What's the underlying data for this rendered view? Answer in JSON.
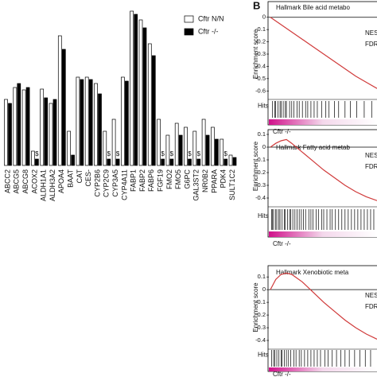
{
  "chart_data": [
    {
      "type": "bar",
      "categories": [
        "ABCC2",
        "ABCG5",
        "ABCG8",
        "ACOX2",
        "ALDH1A1",
        "ALDH3A2",
        "APOA4",
        "BAAT",
        "CAT",
        "CES-",
        "CYP2B6",
        "CYP2C9",
        "CYP3A5",
        "CYP4A11",
        "FABP1",
        "FABP2",
        "FABP6",
        "FGF19",
        "FMO2",
        "FMO5",
        "G6PC",
        "GAL3ST2",
        "NR0B2",
        "PPARA",
        "PDK4",
        "SULT1C2"
      ],
      "series": [
        {
          "name": "Cftr N/N",
          "color": "#ffffff",
          "values": [
            83,
            98,
            95,
            18,
            96,
            78,
            163,
            43,
            111,
            111,
            103,
            43,
            58,
            111,
            194,
            183,
            153,
            58,
            38,
            53,
            48,
            43,
            58,
            48,
            33,
            13
          ]
        },
        {
          "name": "Cftr -/-",
          "color": "#000000",
          "values": [
            78,
            103,
            98,
            8,
            85,
            83,
            146,
            13,
            108,
            108,
            90,
            8,
            8,
            106,
            190,
            173,
            138,
            8,
            8,
            38,
            8,
            8,
            38,
            33,
            8,
            10
          ]
        }
      ],
      "annotations": [
        null,
        null,
        null,
        "$",
        null,
        null,
        null,
        null,
        null,
        null,
        null,
        "$",
        "$",
        null,
        null,
        null,
        null,
        "$",
        "$",
        null,
        "$",
        "$",
        null,
        null,
        "$",
        null
      ],
      "ylim": [
        0,
        208
      ],
      "legend": "top-right"
    },
    {
      "type": "line",
      "panel_label": "B",
      "title": "Hallmark Bile acid metabo",
      "ylabel": "Enrichment score",
      "x": [
        0,
        10,
        20,
        30,
        40,
        50,
        60,
        70,
        80,
        90,
        100
      ],
      "values": [
        0,
        -0.06,
        -0.12,
        -0.18,
        -0.24,
        -0.3,
        -0.36,
        -0.42,
        -0.48,
        -0.53,
        -0.58
      ],
      "color": "#d03a3a",
      "xlim": [
        0,
        100
      ],
      "ylim": [
        -0.65,
        0.05
      ],
      "yticks": [
        0,
        -0.1,
        -0.2,
        -0.3,
        -0.4,
        -0.5,
        -0.6
      ],
      "hits": [
        2,
        4,
        5,
        7,
        9,
        10,
        12,
        14,
        15,
        18,
        20,
        22,
        25,
        27,
        30,
        33,
        35,
        38,
        41,
        44,
        48,
        52,
        55,
        60,
        64,
        70,
        75,
        81,
        88,
        95
      ],
      "hits_label": "Hits",
      "phenotype_label": "Cftr -/-",
      "stats": [
        "NES",
        "FDR"
      ]
    },
    {
      "type": "line",
      "title": "Hallmark Fatty acid metab",
      "ylabel": "Enrichment score",
      "x": [
        0,
        5,
        10,
        15,
        20,
        30,
        40,
        50,
        60,
        70,
        80,
        90,
        100
      ],
      "values": [
        0,
        0.03,
        0.05,
        0.06,
        0.03,
        -0.04,
        -0.11,
        -0.18,
        -0.24,
        -0.3,
        -0.35,
        -0.39,
        -0.42
      ],
      "color": "#d03a3a",
      "xlim": [
        0,
        100
      ],
      "ylim": [
        -0.45,
        0.15
      ],
      "yticks": [
        0.1,
        0,
        -0.1,
        -0.2,
        -0.3,
        -0.4
      ],
      "hits": [
        1,
        2,
        3,
        5,
        6,
        8,
        9,
        11,
        13,
        14,
        16,
        18,
        19,
        21,
        23,
        25,
        27,
        29,
        31,
        33,
        36,
        38,
        40,
        43,
        45,
        48,
        50,
        53,
        56,
        58,
        61,
        64,
        67,
        70,
        73,
        76,
        79,
        82,
        85,
        88,
        91,
        94,
        97
      ],
      "hits_label": "Hits",
      "phenotype_label": "Cftr -/-",
      "stats": [
        "NES",
        "FDR"
      ]
    },
    {
      "type": "line",
      "title": "Hallmark Xenobiotic meta",
      "ylabel": "Enrichment score",
      "x": [
        0,
        5,
        10,
        15,
        20,
        30,
        40,
        50,
        60,
        70,
        80,
        90,
        100
      ],
      "values": [
        0,
        0.08,
        0.12,
        0.13,
        0.12,
        0.06,
        -0.02,
        -0.1,
        -0.17,
        -0.24,
        -0.3,
        -0.35,
        -0.39
      ],
      "color": "#d03a3a",
      "xlim": [
        0,
        100
      ],
      "ylim": [
        -0.45,
        0.17
      ],
      "yticks": [
        0.1,
        0,
        -0.1,
        -0.2,
        -0.3,
        -0.4
      ],
      "hits": [
        1,
        3,
        4,
        6,
        8,
        10,
        11,
        13,
        15,
        17,
        19,
        22,
        24,
        27,
        29,
        32,
        35,
        38,
        41,
        44,
        47,
        51,
        54,
        58,
        62,
        66,
        70,
        74,
        79,
        84,
        89,
        94
      ],
      "hits_label": "Hits",
      "phenotype_label": "Cftr -/-",
      "stats": [
        "NES",
        "FDR"
      ]
    }
  ]
}
